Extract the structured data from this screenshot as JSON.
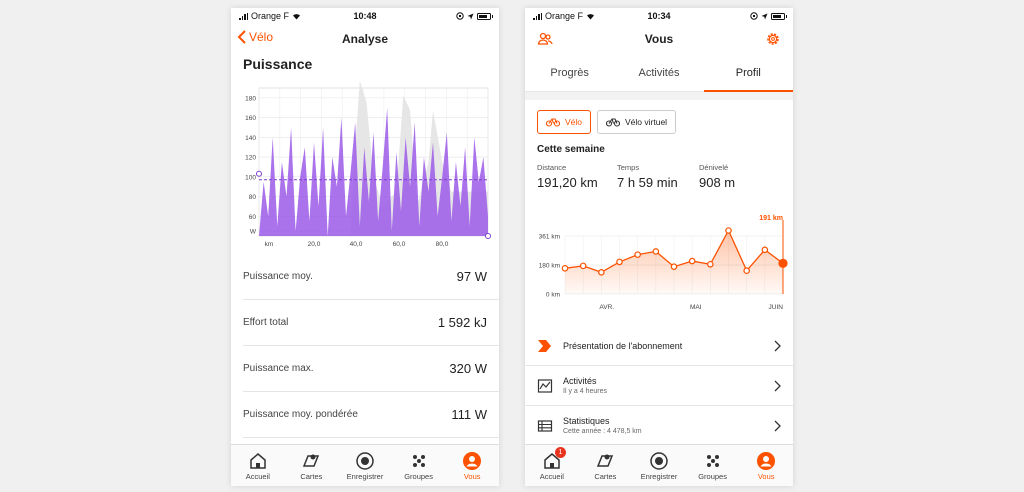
{
  "left": {
    "status": {
      "carrier": "Orange F",
      "time": "10:48"
    },
    "nav": {
      "back_label": "Vélo",
      "title": "Analyse"
    },
    "section_title": "Puissance",
    "power_chart": {
      "y_ticks": [
        "180",
        "160",
        "140",
        "120",
        "100",
        "80",
        "60",
        "W"
      ],
      "x_ticks": [
        "km",
        "20,0",
        "40,0",
        "60,0",
        "80,0"
      ],
      "avg_value": 97,
      "colors": {
        "power": "#9b59e8",
        "elevation": "#e6e6e6",
        "avg_line": "#7b3fd0"
      }
    },
    "metrics": [
      {
        "label": "Puissance moy.",
        "value": "97 W"
      },
      {
        "label": "Effort total",
        "value": "1 592 kJ"
      },
      {
        "label": "Puissance max.",
        "value": "320 W"
      },
      {
        "label": "Puissance moy. pondérée",
        "value": "111 W"
      }
    ]
  },
  "right": {
    "status": {
      "carrier": "Orange F",
      "time": "10:34"
    },
    "nav": {
      "title": "Vous",
      "left_icon": "friends-icon",
      "right_icon": "gear-icon"
    },
    "tabs": [
      {
        "label": "Progrès",
        "active": false
      },
      {
        "label": "Activités",
        "active": false
      },
      {
        "label": "Profil",
        "active": true
      }
    ],
    "sport_buttons": [
      {
        "label": "Vélo",
        "active": true
      },
      {
        "label": "Vélo virtuel",
        "active": false
      }
    ],
    "week": {
      "title": "Cette semaine",
      "distance_label": "Distance",
      "distance": "191,20 km",
      "time_label": "Temps",
      "time": "7 h 59 min",
      "elevation_label": "Dénivelé",
      "elevation": "908 m"
    },
    "chart_data": {
      "type": "area",
      "y_ticks": [
        "361 km",
        "180 km",
        "0 km"
      ],
      "x_labels": [
        "AVR.",
        "MAI",
        "JUIN"
      ],
      "current_label": "191 km",
      "values": [
        160,
        175,
        135,
        200,
        245,
        265,
        170,
        205,
        185,
        395,
        145,
        275,
        191
      ],
      "ylim": [
        0,
        361
      ],
      "color": "#fc5200"
    },
    "menu": [
      {
        "title": "Présentation de l'abonnement",
        "sub": "",
        "icon": "strava-summit-icon"
      },
      {
        "title": "Activités",
        "sub": "Il y a 4 heures",
        "icon": "activity-chart-icon"
      },
      {
        "title": "Statistiques",
        "sub": "Cette année : 4 478,5 km",
        "icon": "stats-table-icon"
      }
    ],
    "badge_count": "1"
  },
  "tabbar": [
    {
      "label": "Accueil",
      "icon": "home-icon"
    },
    {
      "label": "Cartes",
      "icon": "map-icon"
    },
    {
      "label": "Enregistrer",
      "icon": "record-icon"
    },
    {
      "label": "Groupes",
      "icon": "groups-icon"
    },
    {
      "label": "Vous",
      "icon": "profile-icon"
    }
  ]
}
